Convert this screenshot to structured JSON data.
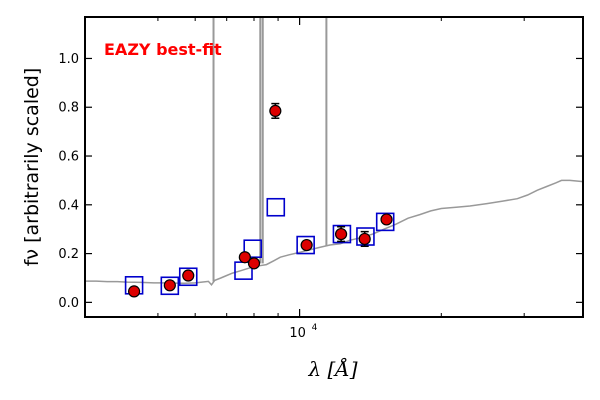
{
  "chart_data": {
    "type": "scatter",
    "title": "",
    "xlabel": "λ [Å]",
    "ylabel": "fν [arbitrarily scaled]",
    "x_scale": "log",
    "xlim": [
      3500,
      40000
    ],
    "ylim": [
      -0.06,
      1.17
    ],
    "x_tick_labels": [
      {
        "value": 10000,
        "label": "10",
        "exponent": "4"
      }
    ],
    "x_minor_ticks": [
      5000,
      6000,
      7000,
      8000,
      9000,
      20000,
      30000
    ],
    "y_ticks": [
      0.0,
      0.2,
      0.4,
      0.6,
      0.8,
      1.0
    ],
    "y_tick_labels": [
      "0.0",
      "0.2",
      "0.4",
      "0.6",
      "0.8",
      "1.0"
    ],
    "grid": false,
    "annotation": {
      "text": "EAZY best-fit",
      "color": "#ff0000"
    },
    "series": [
      {
        "type": "line",
        "color": "#999999",
        "points": [
          [
            3500,
            0.087
          ],
          [
            3700,
            0.087
          ],
          [
            3900,
            0.085
          ],
          [
            4100,
            0.085
          ],
          [
            4300,
            0.083
          ],
          [
            4600,
            0.082
          ],
          [
            4900,
            0.08
          ],
          [
            5100,
            0.08
          ],
          [
            5400,
            0.079
          ],
          [
            5700,
            0.078
          ],
          [
            6000,
            0.08
          ],
          [
            6200,
            0.083
          ],
          [
            6400,
            0.086
          ],
          [
            6500,
            0.072
          ],
          [
            6600,
            0.09
          ],
          [
            6800,
            0.1
          ],
          [
            7000,
            0.11
          ],
          [
            7200,
            0.12
          ],
          [
            7500,
            0.13
          ],
          [
            7800,
            0.14
          ],
          [
            8200,
            0.15
          ],
          [
            8500,
            0.155
          ],
          [
            8800,
            0.17
          ],
          [
            9100,
            0.185
          ],
          [
            9500,
            0.195
          ],
          [
            10000,
            0.205
          ],
          [
            10500,
            0.215
          ],
          [
            11000,
            0.225
          ],
          [
            11600,
            0.235
          ],
          [
            12200,
            0.24
          ],
          [
            12800,
            0.255
          ],
          [
            13500,
            0.265
          ],
          [
            14300,
            0.28
          ],
          [
            15100,
            0.3
          ],
          [
            16000,
            0.32
          ],
          [
            17000,
            0.345
          ],
          [
            18000,
            0.36
          ],
          [
            19000,
            0.375
          ],
          [
            20000,
            0.385
          ],
          [
            21500,
            0.39
          ],
          [
            23000,
            0.395
          ],
          [
            25000,
            0.405
          ],
          [
            27000,
            0.415
          ],
          [
            29000,
            0.425
          ],
          [
            30500,
            0.44
          ],
          [
            32000,
            0.46
          ],
          [
            33500,
            0.475
          ],
          [
            35000,
            0.49
          ],
          [
            36000,
            0.5
          ],
          [
            37500,
            0.5
          ],
          [
            39000,
            0.497
          ],
          [
            40000,
            0.495
          ]
        ]
      },
      {
        "type": "emission_lines",
        "color": "#999999",
        "lines": [
          {
            "x": 6563,
            "y0": 0.085,
            "y1": 1.17
          },
          {
            "x": 8250,
            "y0": 0.16,
            "y1": 1.17
          },
          {
            "x": 8350,
            "y0": 0.16,
            "y1": 1.17
          },
          {
            "x": 11400,
            "y0": 0.23,
            "y1": 1.17
          }
        ]
      },
      {
        "type": "scatter",
        "marker": "square",
        "color": "#0000cc",
        "points": [
          [
            4450,
            0.07
          ],
          [
            5300,
            0.068
          ],
          [
            5800,
            0.105
          ],
          [
            7600,
            0.13
          ],
          [
            7950,
            0.22
          ],
          [
            8900,
            0.39
          ],
          [
            10300,
            0.235
          ],
          [
            12300,
            0.28
          ],
          [
            13800,
            0.27
          ],
          [
            15200,
            0.33
          ]
        ]
      },
      {
        "type": "errorbar",
        "marker": "circle",
        "color": "#dd0000",
        "points": [
          {
            "x": 4450,
            "y": 0.045,
            "err": 0.01
          },
          {
            "x": 5300,
            "y": 0.07,
            "err": 0.01
          },
          {
            "x": 5800,
            "y": 0.11,
            "err": 0.01
          },
          {
            "x": 7650,
            "y": 0.185,
            "err": 0.01
          },
          {
            "x": 8000,
            "y": 0.16,
            "err": 0.01
          },
          {
            "x": 8880,
            "y": 0.785,
            "err": 0.03
          },
          {
            "x": 10350,
            "y": 0.235,
            "err": 0.015
          },
          {
            "x": 12250,
            "y": 0.28,
            "err": 0.03
          },
          {
            "x": 13750,
            "y": 0.26,
            "err": 0.03
          },
          {
            "x": 15300,
            "y": 0.34,
            "err": 0.015
          }
        ]
      }
    ]
  }
}
